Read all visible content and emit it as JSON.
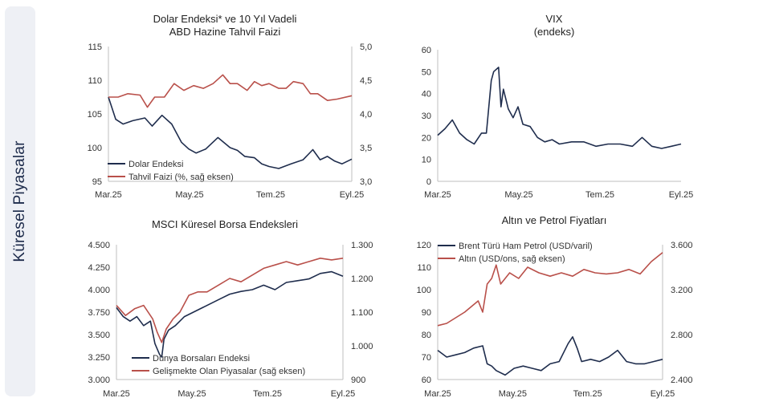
{
  "sidebar": {
    "label": "Küresel Piyasalar"
  },
  "colors": {
    "navy": "#1f2d4d",
    "red": "#b9504a",
    "axis": "#bfbfbf"
  },
  "chart_data": [
    {
      "type": "line",
      "title": "Dolar Endeksi* ve 10 Yıl Vadeli",
      "subtitle": "ABD Hazine Tahvil Faizi",
      "x_ticks": [
        "Mar.25",
        "May.25",
        "Tem.25",
        "Eyl.25"
      ],
      "y_left": {
        "min": 95,
        "max": 115,
        "ticks": [
          "95",
          "100",
          "105",
          "110",
          "115"
        ]
      },
      "y_right": {
        "min": 3.0,
        "max": 5.0,
        "ticks": [
          "3,0",
          "3,5",
          "4,0",
          "4,5",
          "5,0"
        ]
      },
      "legend_position": "bottom-left",
      "series": [
        {
          "name": "Dolar Endeksi",
          "axis": "left",
          "color": "#1f2d4d",
          "x": [
            0,
            0.03,
            0.06,
            0.1,
            0.15,
            0.18,
            0.22,
            0.26,
            0.3,
            0.33,
            0.36,
            0.4,
            0.45,
            0.5,
            0.53,
            0.56,
            0.6,
            0.63,
            0.66,
            0.7,
            0.75,
            0.8,
            0.84,
            0.87,
            0.9,
            0.93,
            0.96,
            1
          ],
          "y": [
            107.5,
            104.2,
            103.5,
            104,
            104.4,
            103.2,
            104.8,
            103.5,
            100.8,
            99.8,
            99.2,
            99.8,
            101.5,
            100,
            99.6,
            98.7,
            98.5,
            97.6,
            97.2,
            96.9,
            97.6,
            98.2,
            99.7,
            98.2,
            98.7,
            98,
            97.6,
            98.3
          ]
        },
        {
          "name": "Tahvil Faizi (%, sağ eksen)",
          "axis": "right",
          "color": "#b9504a",
          "x": [
            0,
            0.04,
            0.08,
            0.13,
            0.16,
            0.19,
            0.23,
            0.27,
            0.31,
            0.35,
            0.39,
            0.43,
            0.47,
            0.5,
            0.53,
            0.57,
            0.6,
            0.63,
            0.66,
            0.7,
            0.73,
            0.76,
            0.8,
            0.83,
            0.86,
            0.9,
            0.94,
            1
          ],
          "y": [
            4.25,
            4.25,
            4.3,
            4.28,
            4.1,
            4.25,
            4.25,
            4.45,
            4.35,
            4.42,
            4.38,
            4.45,
            4.58,
            4.45,
            4.45,
            4.35,
            4.48,
            4.42,
            4.45,
            4.38,
            4.38,
            4.48,
            4.45,
            4.3,
            4.3,
            4.2,
            4.22,
            4.27
          ]
        }
      ]
    },
    {
      "type": "line",
      "title": "VIX",
      "subtitle": "(endeks)",
      "x_ticks": [
        "Mar.25",
        "May.25",
        "Tem.25",
        "Eyl.25"
      ],
      "y_left": {
        "min": 0,
        "max": 60,
        "ticks": [
          "0",
          "10",
          "20",
          "30",
          "40",
          "50",
          "60"
        ]
      },
      "series": [
        {
          "name": "",
          "axis": "left",
          "color": "#1f2d4d",
          "x": [
            0,
            0.03,
            0.06,
            0.09,
            0.12,
            0.15,
            0.18,
            0.2,
            0.22,
            0.23,
            0.25,
            0.26,
            0.27,
            0.29,
            0.31,
            0.33,
            0.35,
            0.38,
            0.41,
            0.44,
            0.47,
            0.5,
            0.55,
            0.6,
            0.65,
            0.7,
            0.75,
            0.8,
            0.84,
            0.88,
            0.92,
            0.96,
            1
          ],
          "y": [
            21,
            24,
            28,
            22,
            19,
            17,
            22,
            22,
            46,
            50,
            52,
            34,
            42,
            33,
            29,
            34,
            26,
            25,
            20,
            18,
            19,
            17,
            18,
            18,
            16,
            17,
            17,
            16,
            20,
            16,
            15,
            16,
            17
          ]
        }
      ]
    },
    {
      "type": "line",
      "title": "MSCI Küresel Borsa Endeksleri",
      "subtitle": "",
      "x_ticks": [
        "Mar.25",
        "May.25",
        "Tem.25",
        "Eyl.25"
      ],
      "y_left": {
        "min": 3000,
        "max": 4500,
        "ticks": [
          "3.000",
          "3.250",
          "3.500",
          "3.750",
          "4.000",
          "4.250",
          "4.500"
        ]
      },
      "y_right": {
        "min": 900,
        "max": 1300,
        "ticks": [
          "900",
          "1.000",
          "1.100",
          "1.200",
          "1.300"
        ]
      },
      "legend_position": "bottom-left",
      "series": [
        {
          "name": "Dünya Borsaları Endeksi",
          "axis": "left",
          "color": "#1f2d4d",
          "x": [
            0,
            0.03,
            0.06,
            0.09,
            0.12,
            0.15,
            0.17,
            0.19,
            0.2,
            0.21,
            0.23,
            0.26,
            0.3,
            0.34,
            0.38,
            0.42,
            0.46,
            0.5,
            0.55,
            0.6,
            0.65,
            0.7,
            0.75,
            0.8,
            0.85,
            0.9,
            0.95,
            1
          ],
          "y": [
            3800,
            3700,
            3650,
            3700,
            3600,
            3650,
            3400,
            3280,
            3250,
            3450,
            3550,
            3600,
            3700,
            3750,
            3800,
            3850,
            3900,
            3950,
            3980,
            4000,
            4050,
            4000,
            4080,
            4100,
            4120,
            4180,
            4200,
            4150
          ]
        },
        {
          "name": "Gelişmekte Olan Piyasalar (sağ eksen)",
          "axis": "right",
          "color": "#b9504a",
          "x": [
            0,
            0.04,
            0.08,
            0.12,
            0.16,
            0.18,
            0.2,
            0.22,
            0.25,
            0.28,
            0.32,
            0.36,
            0.4,
            0.45,
            0.5,
            0.55,
            0.6,
            0.65,
            0.7,
            0.75,
            0.8,
            0.85,
            0.9,
            0.95,
            1
          ],
          "y": [
            1120,
            1090,
            1110,
            1120,
            1080,
            1040,
            1010,
            1050,
            1080,
            1100,
            1150,
            1160,
            1160,
            1180,
            1200,
            1190,
            1210,
            1230,
            1240,
            1250,
            1240,
            1250,
            1260,
            1255,
            1260
          ]
        }
      ]
    },
    {
      "type": "line",
      "title": "Altın ve Petrol Fiyatları",
      "subtitle": "",
      "x_ticks": [
        "Mar.25",
        "May.25",
        "Tem.25",
        "Eyl.25"
      ],
      "y_left": {
        "min": 60,
        "max": 120,
        "ticks": [
          "60",
          "70",
          "80",
          "90",
          "100",
          "110",
          "120"
        ]
      },
      "y_right": {
        "min": 2400,
        "max": 3600,
        "ticks": [
          "2.400",
          "2.800",
          "3.200",
          "3.600"
        ]
      },
      "legend_position": "top-left",
      "series": [
        {
          "name": "Brent Türü Ham Petrol (USD/varil)",
          "axis": "left",
          "color": "#1f2d4d",
          "x": [
            0,
            0.04,
            0.08,
            0.12,
            0.16,
            0.2,
            0.22,
            0.24,
            0.26,
            0.3,
            0.34,
            0.38,
            0.42,
            0.46,
            0.5,
            0.54,
            0.58,
            0.6,
            0.62,
            0.64,
            0.68,
            0.72,
            0.76,
            0.8,
            0.84,
            0.88,
            0.92,
            0.96,
            1
          ],
          "y": [
            73,
            70,
            71,
            72,
            74,
            75,
            67,
            66,
            64,
            62,
            65,
            66,
            65,
            64,
            67,
            68,
            76,
            79,
            74,
            68,
            69,
            68,
            70,
            73,
            68,
            67,
            67,
            68,
            69
          ]
        },
        {
          "name": "Altın (USD/ons, sağ eksen)",
          "axis": "right",
          "color": "#b9504a",
          "x": [
            0,
            0.04,
            0.08,
            0.12,
            0.15,
            0.18,
            0.2,
            0.22,
            0.24,
            0.26,
            0.28,
            0.32,
            0.36,
            0.4,
            0.45,
            0.5,
            0.55,
            0.6,
            0.65,
            0.7,
            0.75,
            0.8,
            0.85,
            0.9,
            0.95,
            1
          ],
          "y": [
            2880,
            2900,
            2950,
            3000,
            3050,
            3100,
            3000,
            3250,
            3300,
            3420,
            3250,
            3350,
            3300,
            3400,
            3350,
            3320,
            3350,
            3320,
            3380,
            3350,
            3340,
            3350,
            3380,
            3340,
            3450,
            3530
          ]
        }
      ]
    }
  ]
}
